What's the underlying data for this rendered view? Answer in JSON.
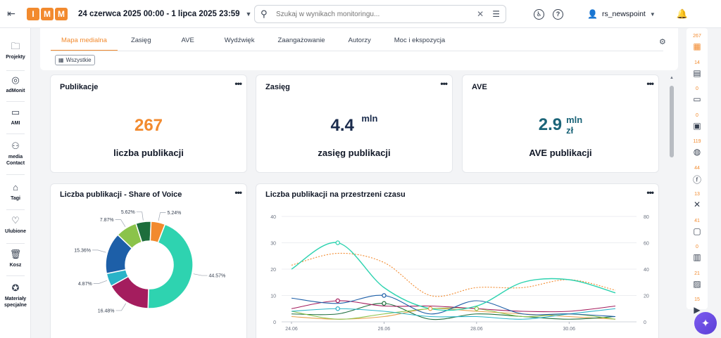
{
  "logo": [
    "I",
    "M",
    "M"
  ],
  "header": {
    "date_range": "24 czerwca 2025 00:00 - 1 lipca 2025 23:59",
    "search_placeholder": "Szukaj w wynikach monitoringu...",
    "username": "rs_newspoint"
  },
  "icons": {
    "menu": "sidebar-toggle-icon",
    "search": "search-icon",
    "clear": "close-icon",
    "filter": "sliders-icon",
    "accessibility": "accessibility-icon",
    "help": "help-icon",
    "user": "user-icon",
    "bell": "bell-icon",
    "more": "more-vertical-icon"
  },
  "sidebar": {
    "items": [
      {
        "label": "Projekty",
        "icon": "folder-icon"
      },
      {
        "label": "adMonit",
        "icon": "target-icon"
      },
      {
        "label": "AMI",
        "icon": "chat-icon"
      },
      {
        "label": "media Contact",
        "icon": "contacts-icon"
      },
      {
        "label": "Tagi",
        "icon": "tag-icon"
      },
      {
        "label": "Ulubione",
        "icon": "heart-icon"
      },
      {
        "label": "Kosz",
        "icon": "trash-icon"
      },
      {
        "label": "Materiały specjalne",
        "icon": "star-badge-icon"
      }
    ]
  },
  "tabs": [
    {
      "label": "Mapa medialna",
      "active": true
    },
    {
      "label": "Zasięg",
      "active": false
    },
    {
      "label": "AVE",
      "active": false
    },
    {
      "label": "Wydźwięk",
      "active": false
    },
    {
      "label": "Zaangażowanie",
      "active": false
    },
    {
      "label": "Autorzy",
      "active": false
    },
    {
      "label": "Moc i ekspozycja",
      "active": false
    }
  ],
  "filter_chip": "Wszystkie",
  "cards": {
    "publikacje": {
      "title": "Publikacje",
      "value": "267",
      "label": "liczba publikacji"
    },
    "zasieg": {
      "title": "Zasięg",
      "value": "4.4",
      "unit": "mln",
      "label": "zasięg publikacji"
    },
    "ave": {
      "title": "AVE",
      "value": "2.9",
      "unit1": "mln",
      "unit2": "zł",
      "label": "AVE publikacji"
    }
  },
  "colors": {
    "accent": "#f28a2e",
    "navy": "#1a2b4c",
    "teal_dark": "#1b6478"
  },
  "right_sidebar": [
    {
      "count": "267",
      "icon": "grid-icon",
      "color": "#f28a2e"
    },
    {
      "count": "14",
      "icon": "newspaper-icon",
      "color": "#374151"
    },
    {
      "count": "0",
      "icon": "monitor-icon",
      "color": "#374151"
    },
    {
      "count": "0",
      "icon": "radio-icon",
      "color": "#374151"
    },
    {
      "count": "119",
      "icon": "globe-icon",
      "color": "#374151"
    },
    {
      "count": "44",
      "icon": "facebook-icon",
      "color": "#374151"
    },
    {
      "count": "13",
      "icon": "x-icon",
      "color": "#374151"
    },
    {
      "count": "41",
      "icon": "comments-icon",
      "color": "#374151"
    },
    {
      "count": "0",
      "icon": "browser-icon",
      "color": "#374151"
    },
    {
      "count": "21",
      "icon": "image-icon",
      "color": "#374151"
    },
    {
      "count": "15",
      "icon": "video-icon",
      "color": "#374151"
    }
  ],
  "chart_data": [
    {
      "type": "pie",
      "title": "Liczba publikacji - Share of Voice",
      "donut": true,
      "slices": [
        {
          "value": 44.57,
          "label": "44.57%",
          "color": "#2ed3b0"
        },
        {
          "value": 16.48,
          "label": "16.48%",
          "color": "#a41d5e"
        },
        {
          "value": 4.87,
          "label": "4.87%",
          "color": "#2ab3c8"
        },
        {
          "value": 15.36,
          "label": "15.36%",
          "color": "#1d5fa8"
        },
        {
          "value": 7.87,
          "label": "7.87%",
          "color": "#8bc34a"
        },
        {
          "value": 5.62,
          "label": "5.62%",
          "color": "#1e6e3c"
        },
        {
          "value": 5.24,
          "label": "5.24%",
          "color": "#f28a2e"
        }
      ]
    },
    {
      "type": "line",
      "title": "Liczba publikacji na przestrzeni czasu",
      "x": [
        "24.06",
        "25.06",
        "26.06",
        "27.06",
        "28.06",
        "29.06",
        "30.06",
        "01.07"
      ],
      "x_ticks": [
        "24.06",
        "26.06",
        "28.06",
        "30.06"
      ],
      "y_left": {
        "ylim": [
          0,
          40
        ],
        "ticks": [
          "0",
          "10",
          "20",
          "30",
          "40"
        ]
      },
      "y_right": {
        "ylim": [
          0,
          80
        ],
        "ticks": [
          "0",
          "20",
          "40",
          "60",
          "80"
        ]
      },
      "series": [
        {
          "color": "#2ed3b0",
          "axis": "left",
          "values": [
            20,
            30,
            13,
            5,
            6,
            15,
            16,
            11
          ]
        },
        {
          "color": "#f28a2e",
          "axis": "right",
          "dashed": true,
          "values": [
            43,
            52,
            45,
            20,
            26,
            26,
            32,
            24
          ]
        },
        {
          "color": "#1d5fa8",
          "axis": "left",
          "values": [
            9,
            7,
            10,
            3,
            8,
            3,
            3,
            2
          ]
        },
        {
          "color": "#a41d5e",
          "axis": "left",
          "values": [
            5,
            8,
            6,
            6,
            5,
            4,
            4,
            6
          ]
        },
        {
          "color": "#2ab3c8",
          "axis": "left",
          "values": [
            4,
            5,
            4,
            2,
            2,
            1,
            3,
            5
          ]
        },
        {
          "color": "#8bc34a",
          "axis": "left",
          "values": [
            4,
            1,
            3,
            5,
            5,
            2,
            3,
            1
          ]
        },
        {
          "color": "#1e6e3c",
          "axis": "left",
          "values": [
            3,
            3,
            7,
            1,
            3,
            2,
            1,
            2
          ]
        },
        {
          "color": "#e8a04c",
          "axis": "left",
          "values": [
            2,
            1,
            2,
            5,
            4,
            3,
            2,
            1
          ]
        }
      ],
      "markers": [
        {
          "series": 0,
          "index": 1
        },
        {
          "series": 3,
          "index": 1
        },
        {
          "series": 4,
          "index": 1
        },
        {
          "series": 2,
          "index": 2
        },
        {
          "series": 6,
          "index": 2
        },
        {
          "series": 7,
          "index": 3
        },
        {
          "series": 5,
          "index": 4
        }
      ]
    }
  ]
}
